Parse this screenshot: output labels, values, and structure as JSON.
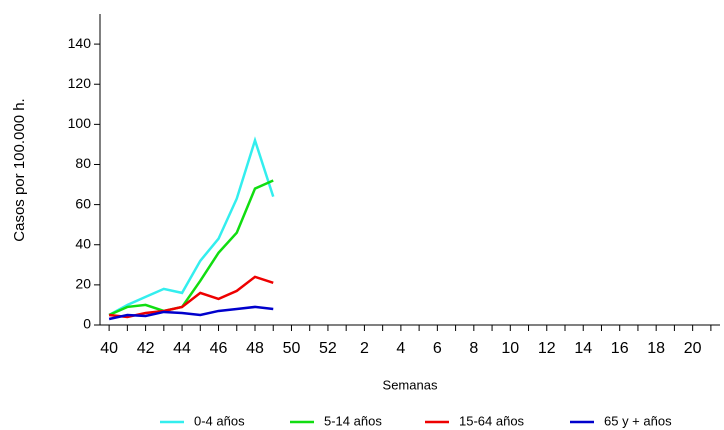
{
  "chart_data": {
    "type": "line",
    "y_label": "Casos por 100.000 h.",
    "x_label": "Semanas",
    "categories": [
      "40",
      null,
      "42",
      null,
      "44",
      null,
      "46",
      null,
      "48",
      null,
      "50",
      null,
      "52",
      null,
      "2",
      null,
      "4",
      null,
      "6",
      null,
      "8",
      null,
      "10",
      null,
      "12",
      null,
      "14",
      null,
      "16",
      null,
      "18",
      null,
      "20",
      null
    ],
    "series": [
      {
        "name": "0-4 años",
        "color": "#33eeee",
        "values": [
          5,
          10,
          14,
          18,
          16,
          32,
          43,
          63,
          92,
          64,
          null,
          null,
          null,
          null,
          null,
          null,
          null,
          null,
          null,
          null,
          null,
          null,
          null,
          null,
          null,
          null,
          null,
          null,
          null,
          null,
          null,
          null,
          null,
          null
        ]
      },
      {
        "name": "5-14 años",
        "color": "#11dd11",
        "values": [
          5,
          9,
          10,
          7,
          9,
          22,
          36,
          46,
          68,
          72,
          null,
          null,
          null,
          null,
          null,
          null,
          null,
          null,
          null,
          null,
          null,
          null,
          null,
          null,
          null,
          null,
          null,
          null,
          null,
          null,
          null,
          null,
          null,
          null
        ]
      },
      {
        "name": "15-64 años",
        "color": "#ee0000",
        "values": [
          5,
          4,
          6,
          7,
          9,
          16,
          13,
          17,
          24,
          21,
          null,
          null,
          null,
          null,
          null,
          null,
          null,
          null,
          null,
          null,
          null,
          null,
          null,
          null,
          null,
          null,
          null,
          null,
          null,
          null,
          null,
          null,
          null,
          null
        ]
      },
      {
        "name": "65 y + años",
        "color": "#0000cc",
        "values": [
          3,
          5,
          4.5,
          6.5,
          6,
          5,
          7,
          8,
          9,
          8,
          null,
          null,
          null,
          null,
          null,
          null,
          null,
          null,
          null,
          null,
          null,
          null,
          null,
          null,
          null,
          null,
          null,
          null,
          null,
          null,
          null,
          null,
          null,
          null
        ]
      }
    ],
    "ylim": [
      0,
      155
    ],
    "yticks": [
      0,
      20,
      40,
      60,
      80,
      100,
      120,
      140
    ],
    "grid": false,
    "legend": "bottom"
  }
}
